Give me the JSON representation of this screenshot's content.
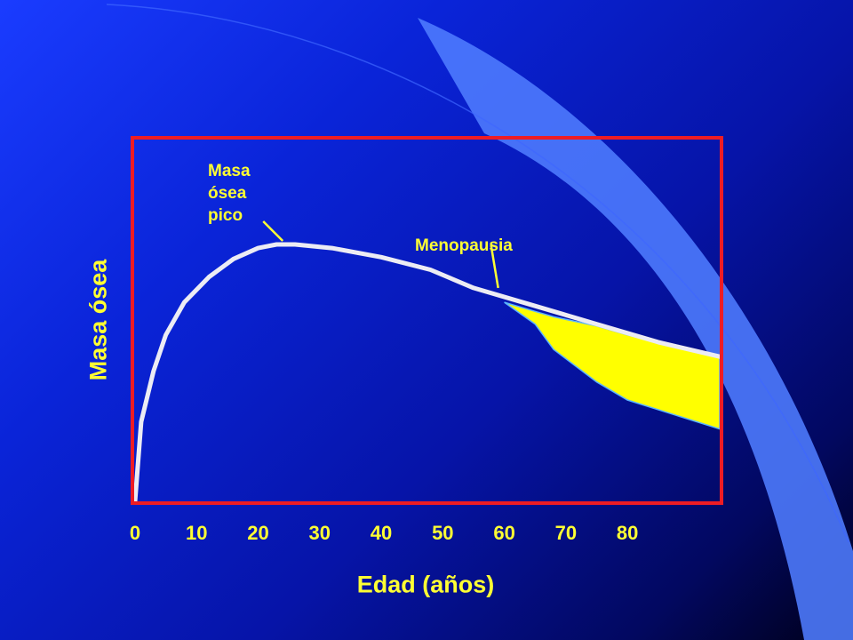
{
  "colors": {
    "background": "#0a1ad0",
    "frame": "#ee1c24",
    "curve": "#ececf4",
    "loss_fill": "#ffff00",
    "text": "#ffff33",
    "decor_swoosh": "#4f7cff"
  },
  "chart_data": {
    "type": "area",
    "xlabel": "Edad (años)",
    "ylabel": "Masa ósea",
    "xlim": [
      0,
      95
    ],
    "ylim": [
      0,
      100
    ],
    "x_ticks": [
      "0",
      "10",
      "20",
      "30",
      "40",
      "50",
      "60",
      "70",
      "80"
    ],
    "grid": false,
    "series": [
      {
        "points": [
          [
            0,
            0
          ],
          [
            1,
            22
          ],
          [
            3,
            36
          ],
          [
            5,
            46
          ],
          [
            8,
            55
          ],
          [
            12,
            62
          ],
          [
            16,
            67
          ],
          [
            20,
            70
          ],
          [
            23,
            71
          ],
          [
            26,
            71
          ],
          [
            32,
            70
          ],
          [
            40,
            67.5
          ],
          [
            48,
            64
          ],
          [
            55,
            59
          ],
          [
            65,
            54
          ],
          [
            75,
            49
          ],
          [
            85,
            44
          ],
          [
            95,
            40
          ]
        ]
      }
    ],
    "shaded_region": {
      "x": [
        60,
        65,
        68,
        75,
        80,
        95
      ],
      "upper": [
        55,
        52.5,
        51,
        48.5,
        46,
        40
      ],
      "lower": [
        55,
        49,
        42,
        33,
        28,
        20
      ]
    },
    "annotations": [
      {
        "text_lines": [
          "Masa",
          "ósea",
          "pico"
        ],
        "x": 24,
        "y": 71
      },
      {
        "text": "Menopausia",
        "x": 59,
        "y": 58
      }
    ]
  }
}
